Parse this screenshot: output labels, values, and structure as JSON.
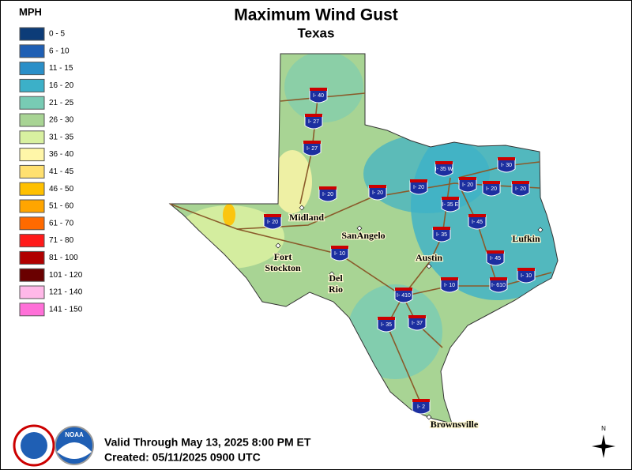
{
  "header": {
    "title": "Maximum Wind Gust",
    "subtitle": "Texas"
  },
  "legend": {
    "unit": "MPH",
    "entries": [
      {
        "label": "0 - 5",
        "color": "#0c3c78"
      },
      {
        "label": "6 - 10",
        "color": "#1f5fb4"
      },
      {
        "label": "11 - 15",
        "color": "#2a8fc8"
      },
      {
        "label": "16 - 20",
        "color": "#3cb0c8"
      },
      {
        "label": "21 - 25",
        "color": "#78cbb4"
      },
      {
        "label": "26 - 30",
        "color": "#a8d494"
      },
      {
        "label": "31 - 35",
        "color": "#d8f0a0"
      },
      {
        "label": "36 - 40",
        "color": "#fff6a8"
      },
      {
        "label": "41 - 45",
        "color": "#ffe070"
      },
      {
        "label": "46 - 50",
        "color": "#ffc000"
      },
      {
        "label": "51 - 60",
        "color": "#ffa500"
      },
      {
        "label": "61 - 70",
        "color": "#ff6a00"
      },
      {
        "label": "71 - 80",
        "color": "#ff1a1a"
      },
      {
        "label": "81 - 100",
        "color": "#b00000"
      },
      {
        "label": "101 - 120",
        "color": "#6a0000"
      },
      {
        "label": "121 - 140",
        "color": "#ffb8e8"
      },
      {
        "label": "141 - 150",
        "color": "#ff70d8"
      }
    ]
  },
  "cities": [
    {
      "lines": [
        "Midland"
      ]
    },
    {
      "lines": [
        "SanAngelo"
      ]
    },
    {
      "lines": [
        "Fort",
        "Stockton"
      ]
    },
    {
      "lines": [
        "Del",
        "Rio"
      ]
    },
    {
      "lines": [
        "Austin"
      ]
    },
    {
      "lines": [
        "Lufkin"
      ]
    },
    {
      "lines": [
        "Brownsville"
      ]
    }
  ],
  "shields": [
    "I- 40",
    "I- 27",
    "I- 27",
    "I- 20",
    "I- 20",
    "I- 20",
    "I- 20",
    "I- 35 W",
    "I- 20",
    "I- 30",
    "I- 20",
    "I- 20",
    "I- 35 E",
    "I- 45",
    "I- 35",
    "I- 10",
    "I- 45",
    "I- 10",
    "I- 610",
    "I- 10",
    "I- 410",
    "I- 35",
    "I- 37",
    "I- 2"
  ],
  "footer": {
    "valid": "Valid Through May 13, 2025 8:00 PM ET",
    "created": "Created: 05/11/2025 0900 UTC"
  },
  "logos": {
    "noaa": "NOAA",
    "compass": "N"
  }
}
